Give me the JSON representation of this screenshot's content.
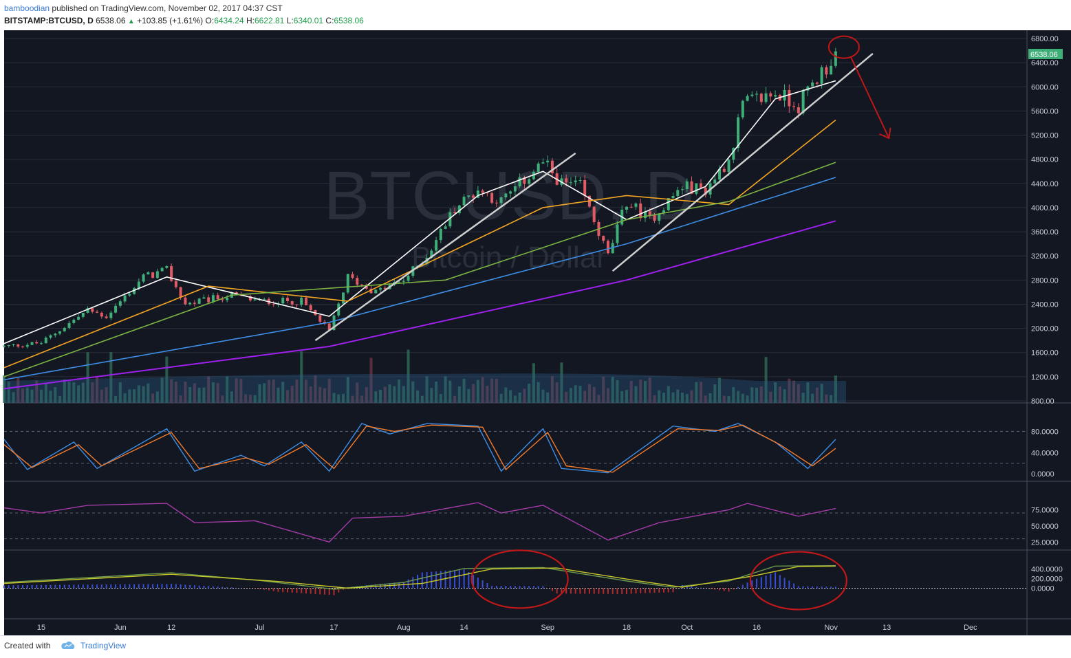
{
  "header": {
    "author": "bamboodian",
    "published_text": "published on TradingView.com, November 02, 2017 04:37 CST",
    "symbol": "BITSTAMP:BTCUSD, D",
    "last": "6538.06",
    "change_arrow": "▲",
    "change": "+103.85 (+1.61%)",
    "o_label": "O:",
    "o_value": "6434.24",
    "h_label": "H:",
    "h_value": "6622.81",
    "l_label": "L:",
    "l_value": "6340.01",
    "c_label": "C:",
    "c_value": "6538.06"
  },
  "footer": {
    "created_with": "Created with",
    "brand": "TradingView"
  },
  "colors": {
    "background": "#131722",
    "grid": "#2a2e39",
    "up": "#3fae78",
    "down": "#e05b66",
    "ma_white": "#ffffff",
    "ma_orange": "#f5a623",
    "ma_green": "#7cb342",
    "ma_blue": "#3e8ee6",
    "ma_purple": "#a020f0",
    "stoch_k": "#3e8ee6",
    "stoch_d": "#f57c2a",
    "rsi": "#a43ba8",
    "macd": "#6e9a4e",
    "signal": "#c9c92a",
    "annotation": "#c01818",
    "trendline": "#cfcfcf",
    "last_price_bg": "#3fae78"
  },
  "chart_data": [
    {
      "type": "candlestick",
      "watermark_symbol": "BTCUSD, D",
      "watermark_name": "Bitcoin / Dollar",
      "y_ticks": [
        "6800.00",
        "6400.00",
        "6000.00",
        "5600.00",
        "5200.00",
        "4800.00",
        "4400.00",
        "4000.00",
        "3600.00",
        "3200.00",
        "2800.00",
        "2400.00",
        "2000.00",
        "1600.00",
        "1200.00",
        "800.00"
      ],
      "ylim": [
        800,
        6800
      ],
      "x_ticks": [
        "15",
        "Jun",
        "12",
        "Jul",
        "17",
        "Aug",
        "14",
        "Sep",
        "18",
        "Oct",
        "16",
        "Nov",
        "13",
        "Dec"
      ],
      "last_price_label": "6538.06",
      "approx_close_path": [
        {
          "date": "2017-05-07",
          "close": 1700
        },
        {
          "date": "2017-05-15",
          "close": 1760
        },
        {
          "date": "2017-05-25",
          "close": 2300
        },
        {
          "date": "2017-05-29",
          "close": 2200
        },
        {
          "date": "2017-06-06",
          "close": 2850
        },
        {
          "date": "2017-06-11",
          "close": 2960
        },
        {
          "date": "2017-06-15",
          "close": 2400
        },
        {
          "date": "2017-06-25",
          "close": 2550
        },
        {
          "date": "2017-07-01",
          "close": 2450
        },
        {
          "date": "2017-07-10",
          "close": 2450
        },
        {
          "date": "2017-07-16",
          "close": 1950
        },
        {
          "date": "2017-07-20",
          "close": 2850
        },
        {
          "date": "2017-07-26",
          "close": 2600
        },
        {
          "date": "2017-08-01",
          "close": 2800
        },
        {
          "date": "2017-08-06",
          "close": 3200
        },
        {
          "date": "2017-08-12",
          "close": 4000
        },
        {
          "date": "2017-08-17",
          "close": 4300
        },
        {
          "date": "2017-08-22",
          "close": 4100
        },
        {
          "date": "2017-08-31",
          "close": 4750
        },
        {
          "date": "2017-09-04",
          "close": 4400
        },
        {
          "date": "2017-09-08",
          "close": 4350
        },
        {
          "date": "2017-09-14",
          "close": 3200
        },
        {
          "date": "2017-09-18",
          "close": 4100
        },
        {
          "date": "2017-09-23",
          "close": 3800
        },
        {
          "date": "2017-09-30",
          "close": 4350
        },
        {
          "date": "2017-10-05",
          "close": 4300
        },
        {
          "date": "2017-10-10",
          "close": 4800
        },
        {
          "date": "2017-10-13",
          "close": 5700
        },
        {
          "date": "2017-10-20",
          "close": 5900
        },
        {
          "date": "2017-10-25",
          "close": 5700
        },
        {
          "date": "2017-10-29",
          "close": 6150
        },
        {
          "date": "2017-11-01",
          "close": 6434
        },
        {
          "date": "2017-11-02",
          "close": 6538
        }
      ],
      "moving_averages": [
        {
          "color": "white",
          "values": [
            {
              "date": "2017-05-07",
              "v": 1750
            },
            {
              "date": "2017-06-11",
              "v": 2850
            },
            {
              "date": "2017-07-16",
              "v": 2200
            },
            {
              "date": "2017-08-17",
              "v": 4200
            },
            {
              "date": "2017-08-31",
              "v": 4600
            },
            {
              "date": "2017-09-18",
              "v": 3800
            },
            {
              "date": "2017-10-05",
              "v": 4350
            },
            {
              "date": "2017-10-20",
              "v": 5800
            },
            {
              "date": "2017-11-02",
              "v": 6100
            }
          ]
        },
        {
          "color": "orange",
          "values": [
            {
              "date": "2017-05-07",
              "v": 1350
            },
            {
              "date": "2017-06-20",
              "v": 2700
            },
            {
              "date": "2017-07-20",
              "v": 2450
            },
            {
              "date": "2017-08-31",
              "v": 4000
            },
            {
              "date": "2017-09-18",
              "v": 4200
            },
            {
              "date": "2017-10-10",
              "v": 4050
            },
            {
              "date": "2017-11-02",
              "v": 5450
            }
          ]
        },
        {
          "color": "green",
          "values": [
            {
              "date": "2017-05-07",
              "v": 1200
            },
            {
              "date": "2017-06-25",
              "v": 2550
            },
            {
              "date": "2017-08-10",
              "v": 2800
            },
            {
              "date": "2017-09-18",
              "v": 3800
            },
            {
              "date": "2017-10-10",
              "v": 4100
            },
            {
              "date": "2017-11-02",
              "v": 4750
            }
          ]
        },
        {
          "color": "blue",
          "values": [
            {
              "date": "2017-05-07",
              "v": 1150
            },
            {
              "date": "2017-07-16",
              "v": 2100
            },
            {
              "date": "2017-09-18",
              "v": 3400
            },
            {
              "date": "2017-11-02",
              "v": 4500
            }
          ]
        },
        {
          "color": "purple",
          "values": [
            {
              "date": "2017-05-07",
              "v": 1000
            },
            {
              "date": "2017-07-16",
              "v": 1700
            },
            {
              "date": "2017-09-18",
              "v": 2800
            },
            {
              "date": "2017-11-02",
              "v": 3780
            }
          ]
        }
      ],
      "trendlines": [
        {
          "from": {
            "date": "2017-07-13",
            "price": 1800
          },
          "to": {
            "date": "2017-09-07",
            "price": 4900
          }
        },
        {
          "from": {
            "date": "2017-09-15",
            "price": 2950
          },
          "to": {
            "date": "2017-11-10",
            "price": 6550
          }
        }
      ],
      "annotations": [
        {
          "kind": "circle",
          "at": {
            "date": "2017-11-02",
            "price": 6600
          }
        },
        {
          "kind": "arrow",
          "from": {
            "date": "2017-11-03",
            "price": 6500
          },
          "to": {
            "date": "2017-11-12",
            "price": 5150
          }
        }
      ]
    },
    {
      "type": "line",
      "y_ticks": [
        "80.0000",
        "40.0000",
        "0.0000"
      ],
      "ylim": [
        -5,
        100
      ],
      "series": [
        {
          "values": [
            {
              "date": "2017-05-07",
              "v": 65
            },
            {
              "date": "2017-05-12",
              "v": 8
            },
            {
              "date": "2017-05-22",
              "v": 60
            },
            {
              "date": "2017-05-27",
              "v": 10
            },
            {
              "date": "2017-06-11",
              "v": 85
            },
            {
              "date": "2017-06-17",
              "v": 5
            },
            {
              "date": "2017-06-27",
              "v": 35
            },
            {
              "date": "2017-07-02",
              "v": 15
            },
            {
              "date": "2017-07-10",
              "v": 60
            },
            {
              "date": "2017-07-16",
              "v": 5
            },
            {
              "date": "2017-07-23",
              "v": 95
            },
            {
              "date": "2017-07-29",
              "v": 75
            },
            {
              "date": "2017-08-06",
              "v": 95
            },
            {
              "date": "2017-08-17",
              "v": 90
            },
            {
              "date": "2017-08-22",
              "v": 5
            },
            {
              "date": "2017-08-31",
              "v": 85
            },
            {
              "date": "2017-09-04",
              "v": 10
            },
            {
              "date": "2017-09-14",
              "v": 2
            },
            {
              "date": "2017-09-28",
              "v": 90
            },
            {
              "date": "2017-10-07",
              "v": 80
            },
            {
              "date": "2017-10-12",
              "v": 95
            },
            {
              "date": "2017-10-20",
              "v": 60
            },
            {
              "date": "2017-10-27",
              "v": 10
            },
            {
              "date": "2017-11-02",
              "v": 65
            }
          ]
        },
        {
          "values": [
            {
              "date": "2017-05-07",
              "v": 55
            },
            {
              "date": "2017-05-13",
              "v": 12
            },
            {
              "date": "2017-05-23",
              "v": 55
            },
            {
              "date": "2017-05-28",
              "v": 15
            },
            {
              "date": "2017-06-12",
              "v": 78
            },
            {
              "date": "2017-06-18",
              "v": 10
            },
            {
              "date": "2017-06-28",
              "v": 30
            },
            {
              "date": "2017-07-03",
              "v": 18
            },
            {
              "date": "2017-07-11",
              "v": 55
            },
            {
              "date": "2017-07-17",
              "v": 10
            },
            {
              "date": "2017-07-24",
              "v": 90
            },
            {
              "date": "2017-07-30",
              "v": 80
            },
            {
              "date": "2017-08-07",
              "v": 92
            },
            {
              "date": "2017-08-18",
              "v": 88
            },
            {
              "date": "2017-08-23",
              "v": 8
            },
            {
              "date": "2017-09-01",
              "v": 78
            },
            {
              "date": "2017-09-05",
              "v": 15
            },
            {
              "date": "2017-09-15",
              "v": 3
            },
            {
              "date": "2017-09-29",
              "v": 85
            },
            {
              "date": "2017-10-08",
              "v": 82
            },
            {
              "date": "2017-10-13",
              "v": 92
            },
            {
              "date": "2017-10-21",
              "v": 55
            },
            {
              "date": "2017-10-28",
              "v": 15
            },
            {
              "date": "2017-11-02",
              "v": 48
            }
          ]
        }
      ]
    },
    {
      "type": "line",
      "y_ticks": [
        "75.0000",
        "50.0000",
        "25.0000"
      ],
      "ylim": [
        20,
        100
      ],
      "series": [
        {
          "values": [
            {
              "date": "2017-05-07",
              "v": 78
            },
            {
              "date": "2017-05-15",
              "v": 70
            },
            {
              "date": "2017-05-25",
              "v": 82
            },
            {
              "date": "2017-06-11",
              "v": 85
            },
            {
              "date": "2017-06-17",
              "v": 55
            },
            {
              "date": "2017-06-30",
              "v": 58
            },
            {
              "date": "2017-07-16",
              "v": 25
            },
            {
              "date": "2017-07-21",
              "v": 62
            },
            {
              "date": "2017-08-01",
              "v": 65
            },
            {
              "date": "2017-08-17",
              "v": 86
            },
            {
              "date": "2017-08-22",
              "v": 70
            },
            {
              "date": "2017-08-31",
              "v": 82
            },
            {
              "date": "2017-09-14",
              "v": 28
            },
            {
              "date": "2017-09-25",
              "v": 55
            },
            {
              "date": "2017-10-10",
              "v": 75
            },
            {
              "date": "2017-10-14",
              "v": 85
            },
            {
              "date": "2017-10-25",
              "v": 65
            },
            {
              "date": "2017-11-02",
              "v": 77
            }
          ]
        }
      ]
    },
    {
      "type": "line",
      "y_ticks": [
        "400.0000",
        "200.0000",
        "0.0000"
      ],
      "ylim": [
        -250,
        550
      ],
      "series": [
        {
          "values": [
            {
              "date": "2017-05-07",
              "v": 120
            },
            {
              "date": "2017-06-12",
              "v": 320
            },
            {
              "date": "2017-07-01",
              "v": 160
            },
            {
              "date": "2017-07-17",
              "v": -20
            },
            {
              "date": "2017-08-01",
              "v": 120
            },
            {
              "date": "2017-08-14",
              "v": 410
            },
            {
              "date": "2017-08-31",
              "v": 430
            },
            {
              "date": "2017-09-18",
              "v": 150
            },
            {
              "date": "2017-09-28",
              "v": 20
            },
            {
              "date": "2017-10-10",
              "v": 150
            },
            {
              "date": "2017-10-20",
              "v": 460
            },
            {
              "date": "2017-11-02",
              "v": 470
            }
          ]
        },
        {
          "values": [
            {
              "date": "2017-05-07",
              "v": 100
            },
            {
              "date": "2017-06-12",
              "v": 290
            },
            {
              "date": "2017-07-05",
              "v": 140
            },
            {
              "date": "2017-07-20",
              "v": 0
            },
            {
              "date": "2017-08-05",
              "v": 100
            },
            {
              "date": "2017-08-20",
              "v": 400
            },
            {
              "date": "2017-09-03",
              "v": 420
            },
            {
              "date": "2017-09-20",
              "v": 160
            },
            {
              "date": "2017-09-30",
              "v": 20
            },
            {
              "date": "2017-10-15",
              "v": 250
            },
            {
              "date": "2017-10-25",
              "v": 450
            },
            {
              "date": "2017-11-02",
              "v": 460
            }
          ]
        }
      ],
      "annotations": [
        {
          "kind": "circle",
          "center_date": "2017-08-26",
          "center_value": 330
        },
        {
          "kind": "circle",
          "center_date": "2017-10-25",
          "center_value": 300
        }
      ]
    }
  ]
}
